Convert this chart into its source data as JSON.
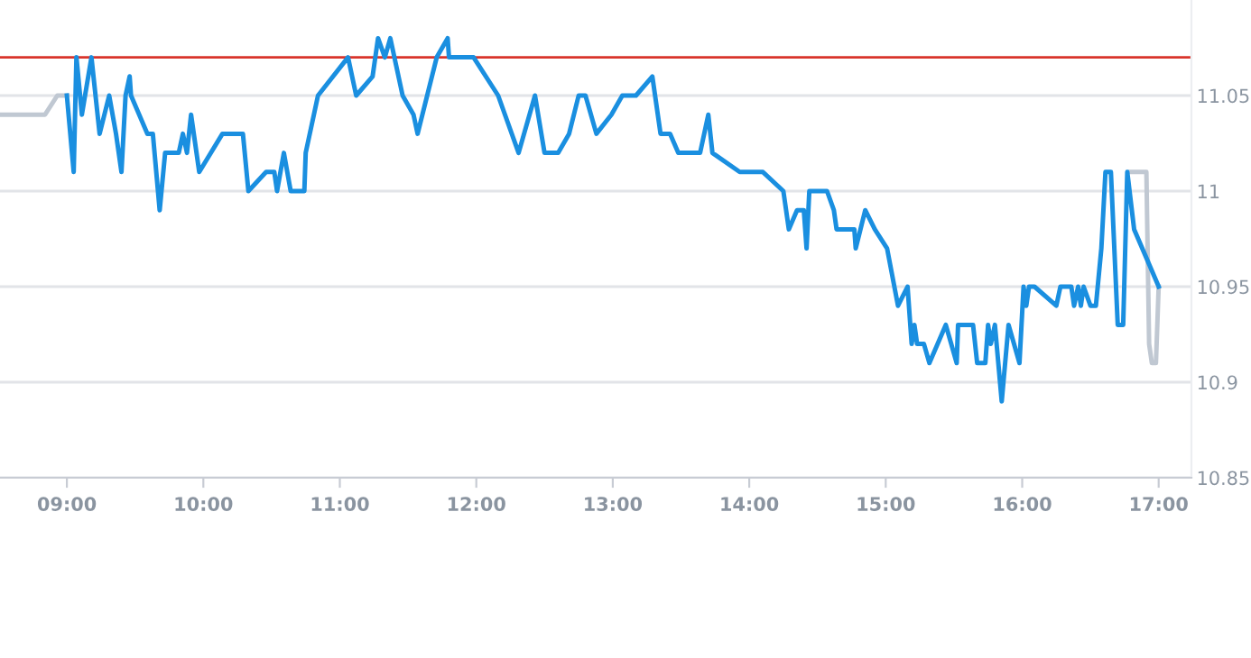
{
  "chart_data": {
    "type": "line",
    "xlim": [
      8.51,
      17.24
    ],
    "ylim": [
      10.85,
      11.1
    ],
    "xticks": [
      {
        "value": 9,
        "label": "09:00"
      },
      {
        "value": 10,
        "label": "10:00"
      },
      {
        "value": 11,
        "label": "11:00"
      },
      {
        "value": 12,
        "label": "12:00"
      },
      {
        "value": 13,
        "label": "13:00"
      },
      {
        "value": 14,
        "label": "14:00"
      },
      {
        "value": 15,
        "label": "15:00"
      },
      {
        "value": 16,
        "label": "16:00"
      },
      {
        "value": 17,
        "label": "17:00"
      }
    ],
    "yticks": [
      10.85,
      10.9,
      10.95,
      11,
      11.05
    ],
    "grid": "y",
    "legend": false,
    "marker": "none",
    "line_style": "solid",
    "ref_lines": [
      {
        "axis": "y",
        "value": 11.07,
        "color": "#d9342b"
      }
    ],
    "series": [
      {
        "color": "#c0c8d2",
        "x": [
          8.51,
          8.84,
          8.93,
          9.0,
          9.01,
          16.79,
          16.91,
          16.93,
          16.95,
          16.98,
          17.0
        ],
        "values": [
          11.04,
          11.04,
          11.05,
          11.05,
          null,
          11.01,
          11.01,
          10.92,
          10.91,
          10.91,
          10.95
        ]
      },
      {
        "color": "#1a8fe0",
        "x": [
          9.0,
          9.05,
          9.07,
          9.11,
          9.18,
          9.24,
          9.31,
          9.36,
          9.4,
          9.43,
          9.46,
          9.47,
          9.59,
          9.63,
          9.68,
          9.72,
          9.82,
          9.85,
          9.88,
          9.91,
          9.97,
          10.14,
          10.29,
          10.33,
          10.46,
          10.52,
          10.54,
          10.59,
          10.64,
          10.74,
          10.75,
          10.84,
          11.06,
          11.12,
          11.24,
          11.28,
          11.33,
          11.37,
          11.46,
          11.54,
          11.57,
          11.71,
          11.79,
          11.8,
          11.98,
          12.16,
          12.31,
          12.43,
          12.5,
          12.6,
          12.68,
          12.75,
          12.8,
          12.88,
          12.99,
          13.07,
          13.17,
          13.29,
          13.35,
          13.42,
          13.48,
          13.64,
          13.7,
          13.73,
          13.93,
          14.1,
          14.25,
          14.29,
          14.35,
          14.4,
          14.42,
          14.44,
          14.57,
          14.62,
          14.64,
          14.77,
          14.78,
          14.85,
          14.92,
          15.01,
          15.09,
          15.16,
          15.19,
          15.21,
          15.23,
          15.28,
          15.32,
          15.44,
          15.52,
          15.53,
          15.64,
          15.67,
          15.73,
          15.75,
          15.77,
          15.8,
          15.85,
          15.9,
          15.98,
          16.01,
          16.03,
          16.05,
          16.09,
          16.25,
          16.28,
          16.36,
          16.38,
          16.41,
          16.43,
          16.45,
          16.5,
          16.54,
          16.58,
          16.61,
          16.65,
          16.7,
          16.74,
          16.77,
          16.82,
          17.0
        ],
        "values": [
          11.05,
          11.01,
          11.07,
          11.04,
          11.07,
          11.03,
          11.05,
          11.03,
          11.01,
          11.05,
          11.06,
          11.05,
          11.03,
          11.03,
          10.99,
          11.02,
          11.02,
          11.03,
          11.02,
          11.04,
          11.01,
          11.03,
          11.03,
          11.0,
          11.01,
          11.01,
          11.0,
          11.02,
          11.0,
          11.0,
          11.02,
          11.05,
          11.07,
          11.05,
          11.06,
          11.08,
          11.07,
          11.08,
          11.05,
          11.04,
          11.03,
          11.07,
          11.08,
          11.07,
          11.07,
          11.05,
          11.02,
          11.05,
          11.02,
          11.02,
          11.03,
          11.05,
          11.05,
          11.03,
          11.04,
          11.05,
          11.05,
          11.06,
          11.03,
          11.03,
          11.02,
          11.02,
          11.04,
          11.02,
          11.01,
          11.01,
          11.0,
          10.98,
          10.99,
          10.99,
          10.97,
          11.0,
          11.0,
          10.99,
          10.98,
          10.98,
          10.97,
          10.99,
          10.98,
          10.97,
          10.94,
          10.95,
          10.92,
          10.93,
          10.92,
          10.92,
          10.91,
          10.93,
          10.91,
          10.93,
          10.93,
          10.91,
          10.91,
          10.93,
          10.92,
          10.93,
          10.89,
          10.93,
          10.91,
          10.95,
          10.94,
          10.95,
          10.95,
          10.94,
          10.95,
          10.95,
          10.94,
          10.95,
          10.94,
          10.95,
          10.94,
          10.94,
          10.97,
          11.01,
          11.01,
          10.93,
          10.93,
          11.01,
          10.98,
          10.95
        ]
      }
    ]
  }
}
